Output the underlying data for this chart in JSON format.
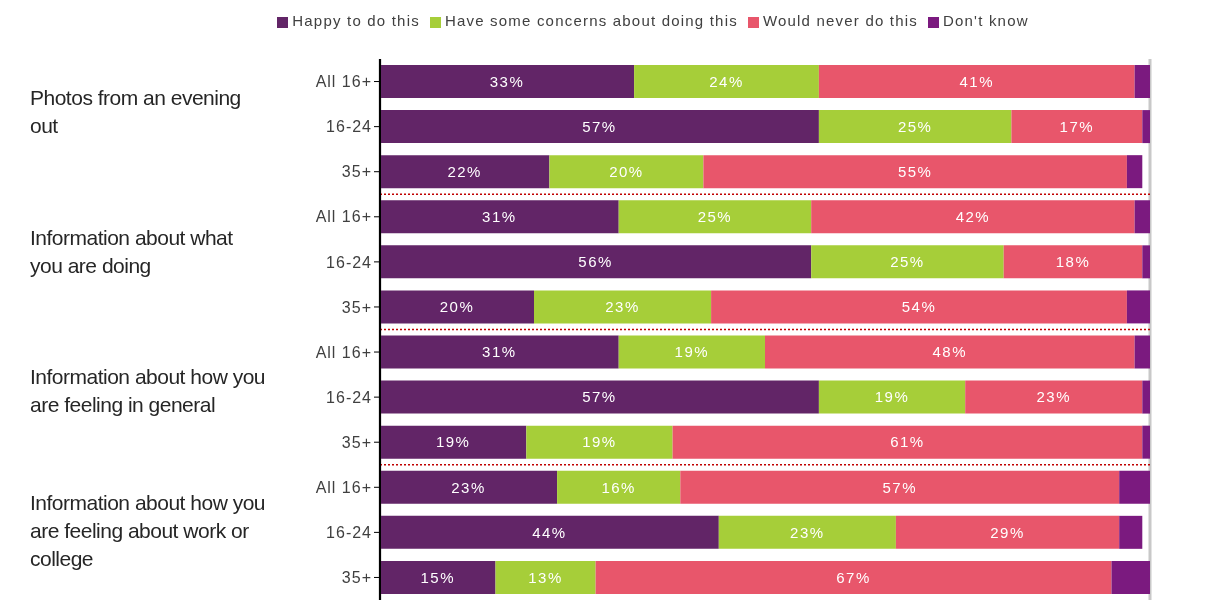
{
  "chart_data": {
    "type": "bar",
    "orientation": "horizontal",
    "stacked": true,
    "categories": [
      "All 16+",
      "16-24",
      "35+",
      "All 16+",
      "16-24",
      "35+",
      "All 16+",
      "16-24",
      "35+",
      "All 16+",
      "16-24",
      "35+"
    ],
    "series": [
      {
        "name": "Happy to do this",
        "color": "#622567",
        "values": [
          33,
          57,
          22,
          31,
          56,
          20,
          31,
          57,
          19,
          23,
          44,
          15
        ],
        "value_labels": [
          "33%",
          "57%",
          "22%",
          "31%",
          "56%",
          "20%",
          "31%",
          "57%",
          "19%",
          "23%",
          "44%",
          "15%"
        ]
      },
      {
        "name": "Have some concerns about doing this",
        "color": "#a6ce39",
        "values": [
          24,
          25,
          20,
          25,
          25,
          23,
          19,
          19,
          19,
          16,
          23,
          13
        ],
        "value_labels": [
          "24%",
          "25%",
          "20%",
          "25%",
          "25%",
          "23%",
          "19%",
          "19%",
          "19%",
          "16%",
          "23%",
          "13%"
        ]
      },
      {
        "name": "Would never do this",
        "color": "#e8566b",
        "values": [
          41,
          17,
          55,
          42,
          18,
          54,
          48,
          23,
          61,
          57,
          29,
          67
        ],
        "value_labels": [
          "41%",
          "17%",
          "55%",
          "42%",
          "18%",
          "54%",
          "48%",
          "23%",
          "61%",
          "57%",
          "29%",
          "67%"
        ]
      },
      {
        "name": "Don't know",
        "color": "#7b1a7f",
        "values": [
          2,
          1,
          2,
          2,
          1,
          3,
          2,
          1,
          1,
          4,
          3,
          5
        ]
      }
    ],
    "annotations": [
      "Photos from an evening out",
      "Information about what you are doing",
      "Information about how you are feeling in general",
      "Information about how you are feeling about work or college"
    ],
    "grid": "x",
    "legend": "top",
    "tick_labels": "y"
  }
}
